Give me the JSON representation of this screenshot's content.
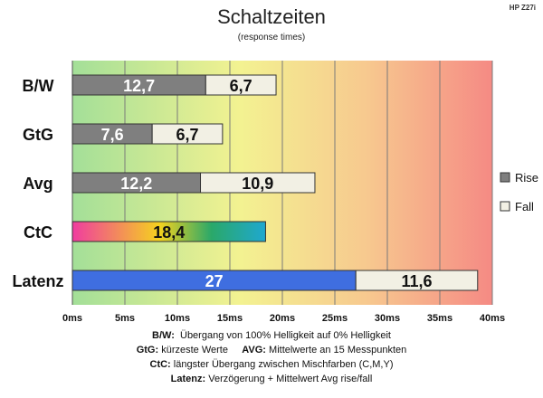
{
  "corner_label": "HP Z27i",
  "chart_data": {
    "type": "bar",
    "orientation": "horizontal",
    "stacked": true,
    "title": "Schaltzeiten",
    "subtitle": "(response times)",
    "categories": [
      "B/W",
      "GtG",
      "Avg",
      "CtC",
      "Latenz"
    ],
    "series": [
      {
        "name": "Rise",
        "values": [
          12.7,
          7.6,
          12.2,
          18.4,
          27
        ],
        "labels": [
          "12,7",
          "7,6",
          "12,2",
          "18,4",
          "27"
        ]
      },
      {
        "name": "Fall",
        "values": [
          6.7,
          6.7,
          10.9,
          null,
          11.6
        ],
        "labels": [
          "6,7",
          "6,7",
          "10,9",
          "",
          "11,6"
        ]
      }
    ],
    "xlim": [
      0,
      40
    ],
    "xticks": [
      0,
      5,
      10,
      15,
      20,
      25,
      30,
      35,
      40
    ],
    "xtick_labels": [
      "0ms",
      "5ms",
      "10ms",
      "15ms",
      "20ms",
      "25ms",
      "30ms",
      "35ms",
      "40ms"
    ],
    "xlabel": "",
    "ylabel": "",
    "grid": true,
    "legend": "right",
    "colors": {
      "rise": "#7f7f7f",
      "fall": "#f2f0e4",
      "latenz_rise": "#3f6ee0",
      "ctc_gradient": [
        "#f03ca0",
        "#f5d21e",
        "#2aa869",
        "#1fa8d0"
      ]
    },
    "background_gradient": [
      "#a3df98",
      "#f3f291",
      "#f7c98f",
      "#f58a84"
    ]
  },
  "notes": [
    {
      "key": "B/W:",
      "text": "Übergang von 100% Helligkeit auf 0% Helligkeit"
    },
    {
      "key": "GtG:",
      "text": "kürzeste Werte",
      "key2": "AVG:",
      "text2": "Mittelwerte an 15 Messpunkten"
    },
    {
      "key": "CtC:",
      "text": "längster Übergang zwischen Mischfarben (C,M,Y)"
    },
    {
      "key": "Latenz:",
      "text": "Verzögerung + Mittelwert Avg rise/fall"
    }
  ]
}
